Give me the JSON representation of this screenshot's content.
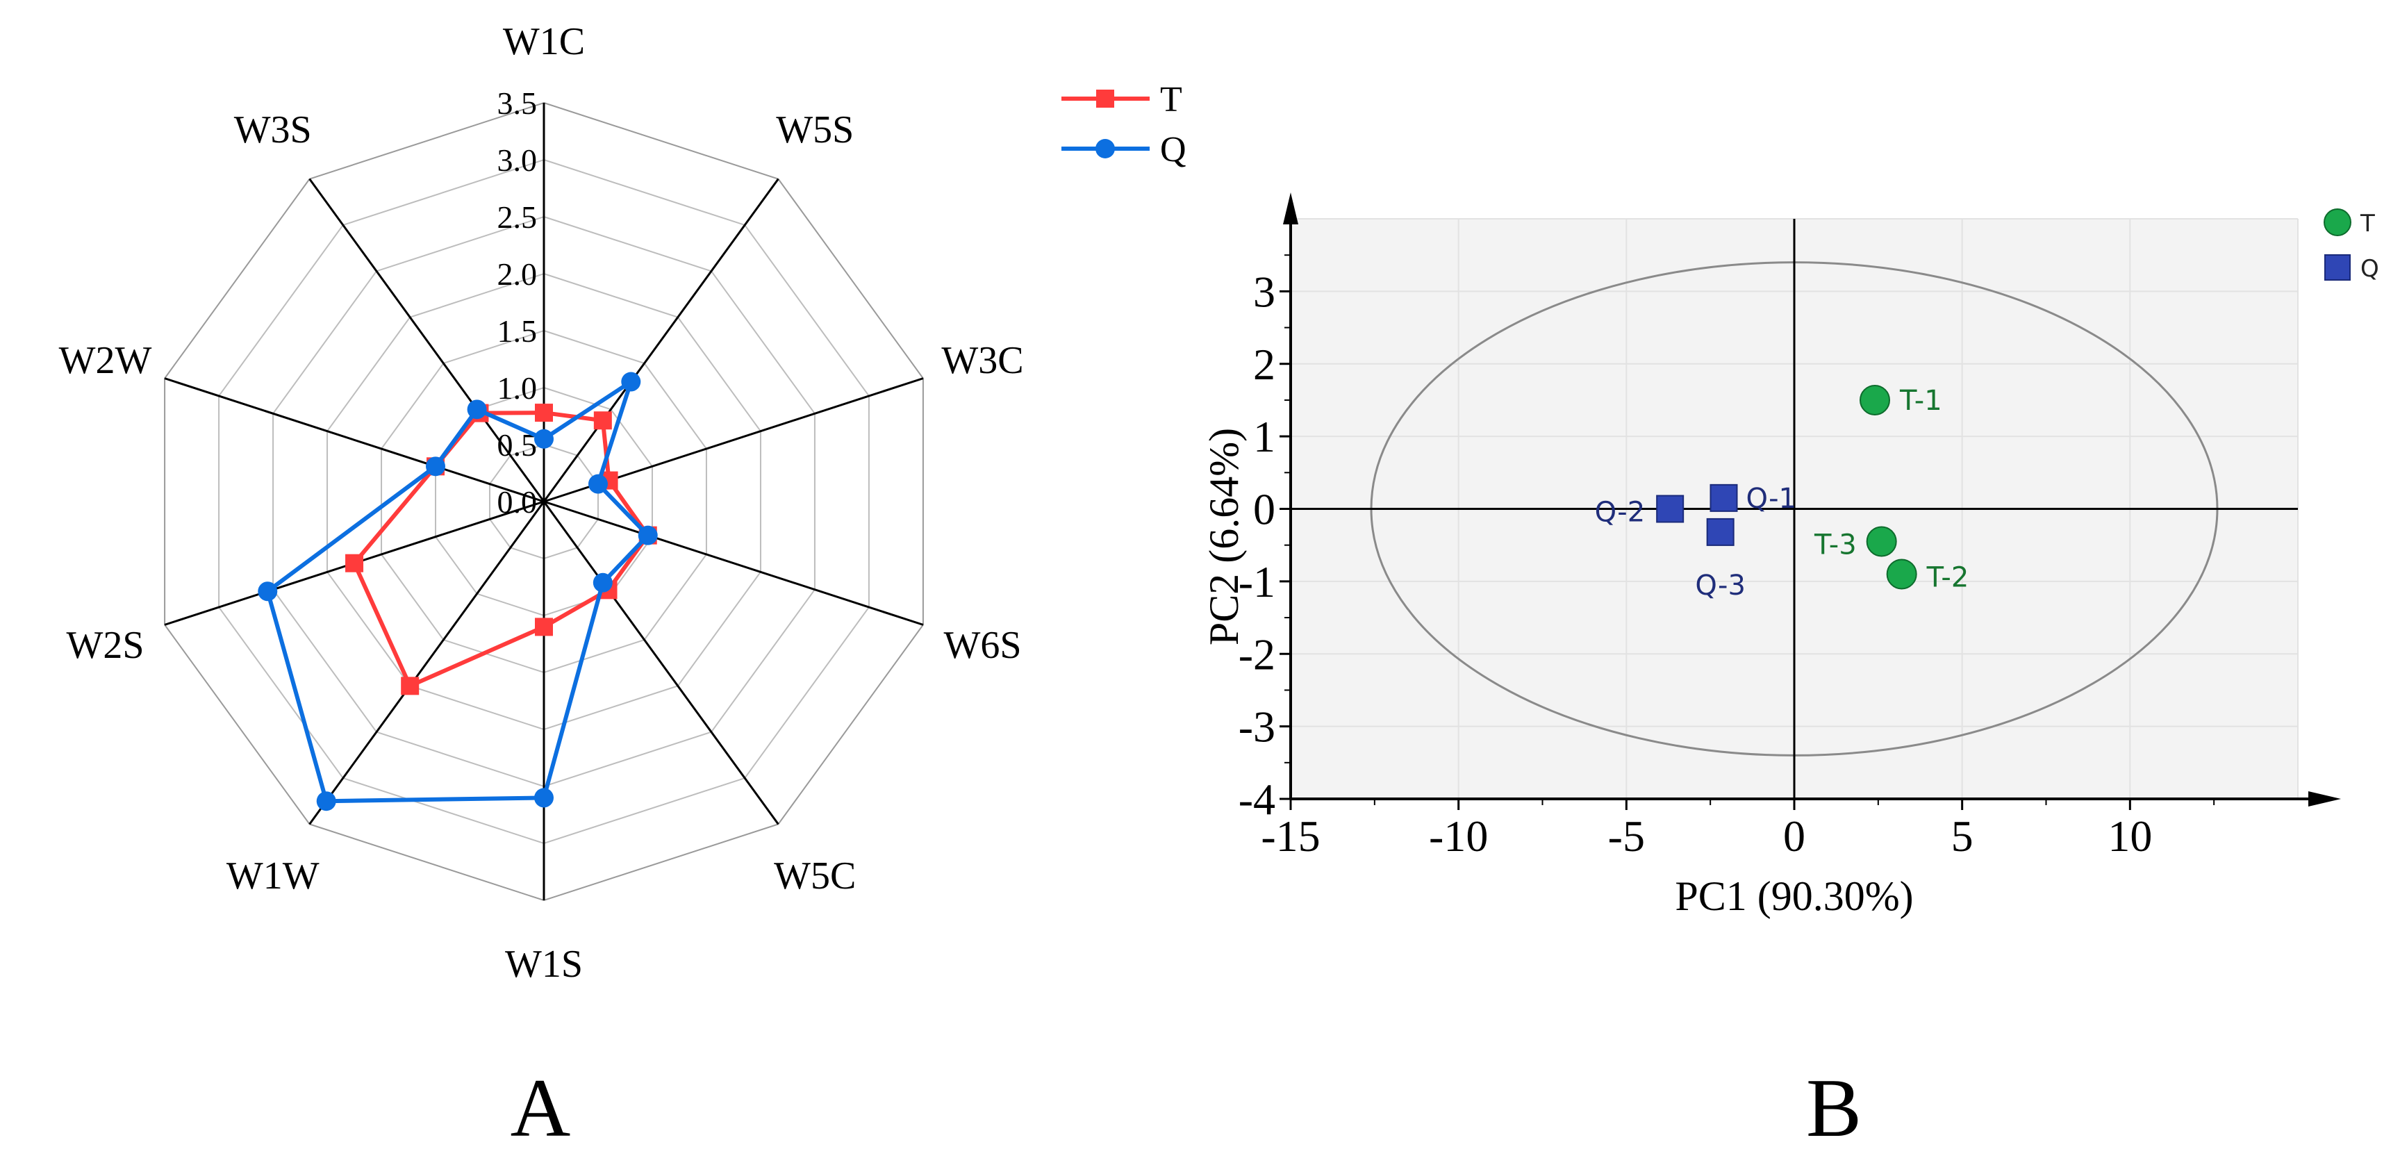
{
  "chart_data": [
    {
      "type": "radar",
      "panel_label": "A",
      "axes": [
        "W1C",
        "W5S",
        "W3C",
        "W6S",
        "W5C",
        "W1S",
        "W1W",
        "W2S",
        "W2W",
        "W3S"
      ],
      "radial_ticks": [
        "0.0",
        "0.5",
        "1.0",
        "1.5",
        "2.0",
        "2.5",
        "3.0",
        "3.5"
      ],
      "rmax": 3.5,
      "series": [
        {
          "name": "T",
          "marker": "square",
          "color": "#ff3b3b",
          "values": [
            0.78,
            0.88,
            0.6,
            0.96,
            0.96,
            1.1,
            2.0,
            1.75,
            1.0,
            0.96
          ]
        },
        {
          "name": "Q",
          "marker": "circle",
          "color": "#0c6fe0",
          "values": [
            0.55,
            1.3,
            0.5,
            0.96,
            0.88,
            2.6,
            3.25,
            2.55,
            1.0,
            1.0
          ]
        }
      ]
    },
    {
      "type": "scatter",
      "panel_label": "B",
      "xlabel": "PC1 (90.30%)",
      "ylabel": "PC2 (6.64%)",
      "xlim": [
        -15,
        15
      ],
      "ylim": [
        -4,
        4
      ],
      "xticks": [
        "-15",
        "-10",
        "-5",
        "0",
        "5",
        "10"
      ],
      "yticks": [
        "3",
        "2",
        "1",
        "0",
        "-1",
        "-2",
        "-3",
        "-4"
      ],
      "legend": [
        {
          "name": "T",
          "marker": "circle",
          "color": "#1aa84b"
        },
        {
          "name": "Q",
          "marker": "square",
          "color": "#2f46b5"
        }
      ],
      "series": [
        {
          "name": "T",
          "color": "#1aa84b",
          "points": [
            {
              "label": "T-1",
              "x": 2.4,
              "y": 1.5
            },
            {
              "label": "T-2",
              "x": 3.2,
              "y": -0.9
            },
            {
              "label": "T-3",
              "x": 2.6,
              "y": -0.45
            }
          ]
        },
        {
          "name": "Q",
          "color": "#2f46b5",
          "points": [
            {
              "label": "Q-1",
              "x": -2.1,
              "y": 0.15
            },
            {
              "label": "Q-2",
              "x": -3.7,
              "y": 0.0
            },
            {
              "label": "Q-3",
              "x": -2.2,
              "y": -0.32
            }
          ]
        }
      ],
      "ellipse": {
        "cx": 0,
        "cy": 0,
        "rx": 12.6,
        "ry": 3.4
      }
    }
  ]
}
